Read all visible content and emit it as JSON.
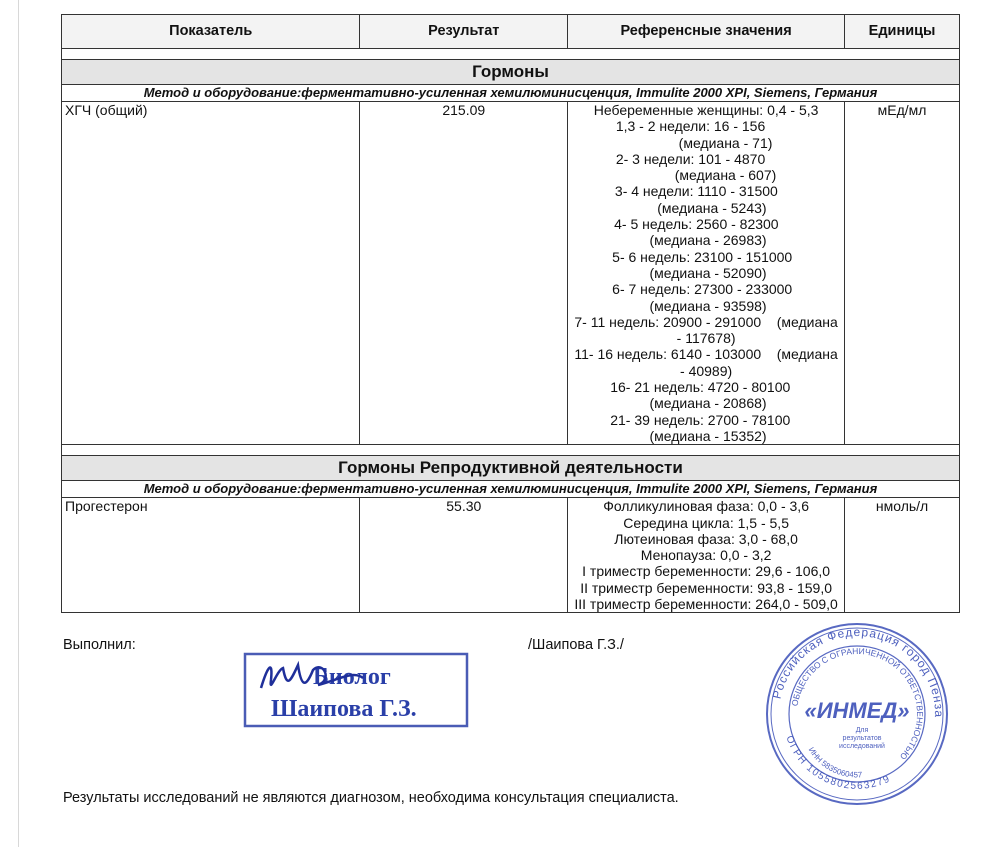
{
  "table": {
    "headers": [
      "Показатель",
      "Результат",
      "Референсные значения",
      "Единицы"
    ],
    "sections": [
      {
        "title": "Гормоны",
        "method": "Метод и оборудование:ферментативно-усиленная хемилюминисценция, Immulite 2000 XPI, Siemens, Германия",
        "rows": [
          {
            "name": "ХГЧ (общий)",
            "result": "215.09",
            "reference": [
              "Небеременные женщины: 0,4 - 5,3",
              "1,3 - 2 недели: 16 - 156        ",
              "          (медиана - 71)",
              "2- 3 недели: 101 - 4870        ",
              "          (медиана - 607)",
              "3- 4 недели: 1110 - 31500     ",
              "   (медиана - 5243)",
              "4- 5 недель: 2560 - 82300     ",
              " (медиана - 26983)",
              "5- 6 недель: 23100 - 151000  ",
              " (медиана - 52090)",
              "6- 7 недель: 27300 - 233000  ",
              " (медиана - 93598)",
              "7- 11 недель: 20900 - 291000    (медиана",
              "- 117678)",
              "11- 16 недель: 6140 - 103000    (медиана",
              "- 40989)",
              "16- 21 недель: 4720 - 80100   ",
              " (медиана - 20868)",
              "21- 39 недель: 2700 - 78100   ",
              " (медиана - 15352)"
            ],
            "units": "мЕд/мл"
          }
        ]
      },
      {
        "title": "Гормоны Репродуктивной деятельности",
        "method": "Метод и оборудование:ферментативно-усиленная хемилюминисценция, Immulite 2000 XPI, Siemens, Германия",
        "rows": [
          {
            "name": "Прогестерон",
            "result": "55.30",
            "reference": [
              "Фолликулиновая фаза: 0,0 - 3,6",
              "Середина цикла: 1,5 - 5,5",
              "Лютеиновая фаза: 3,0 - 68,0",
              "Менопауза: 0,0 - 3,2",
              "I триместр беременности: 29,6 - 106,0",
              "II триместр беременности: 93,8 - 159,0",
              "III триместр беременности: 264,0 - 509,0"
            ],
            "units": "нмоль/л"
          }
        ]
      }
    ]
  },
  "footer": {
    "performed_label": "Выполнил:",
    "performer": "/Шаипова Г.З./",
    "disclaimer": "Результаты исследований не являются диагнозом, необходима консультация специалиста."
  },
  "signature_stamp": {
    "line1": "Биолог",
    "line2": "Шаипова Г.З.",
    "color": "#2a3fa8"
  },
  "round_stamp": {
    "outer": "Российская Федерация город Пенза",
    "inner": "ОБЩЕСТВО С ОГРАНИЧЕННОЙ ОТВЕТСТВЕННОСТЬЮ",
    "name": "«ИНМЕД»",
    "purpose": [
      "Для",
      "результатов",
      "исследований"
    ],
    "inn": "ИНН 5835060457",
    "ogrn": "ОГРН 1055802563279",
    "color": "#3b4fb8"
  }
}
